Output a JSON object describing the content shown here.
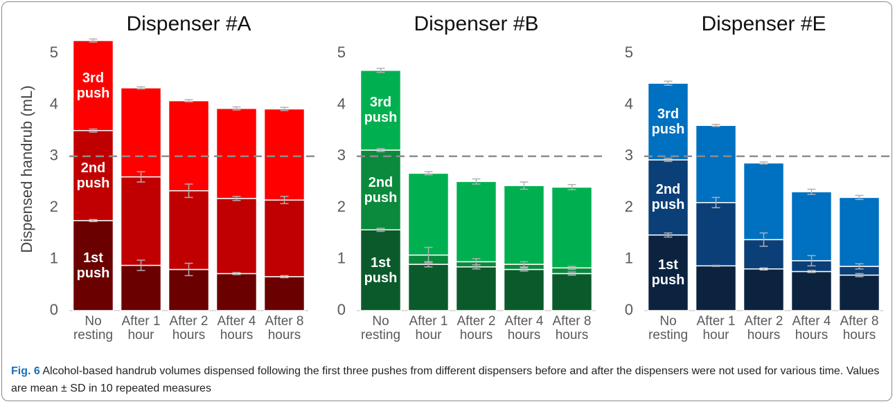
{
  "chart_data": [
    {
      "type": "stacked_bar",
      "title": "Dispenser #A",
      "y_label": "Dispensed handrub (mL)",
      "categories": [
        "No resting",
        "After 1 hour",
        "After 2 hours",
        "After 4 hours",
        "After 8 hours"
      ],
      "ylim": [
        0,
        5.5
      ],
      "yticks": [
        0,
        1,
        2,
        3,
        4,
        5
      ],
      "reference_line": 3,
      "series": [
        {
          "name": "1st push",
          "color": "#6b0000",
          "values": [
            1.75,
            0.88,
            0.8,
            0.72,
            0.66
          ],
          "errors": [
            0.02,
            0.1,
            0.12,
            0.02,
            0.02
          ]
        },
        {
          "name": "2nd push",
          "color": "#c00000",
          "values": [
            1.75,
            1.72,
            1.53,
            1.46,
            1.49
          ],
          "errors": [
            0.03,
            0.1,
            0.13,
            0.04,
            0.07
          ]
        },
        {
          "name": "3rd push",
          "color": "#ff0000",
          "values": [
            1.75,
            1.73,
            1.75,
            1.75,
            1.77
          ],
          "errors": [
            0.03,
            0.02,
            0.02,
            0.03,
            0.03
          ]
        }
      ]
    },
    {
      "type": "stacked_bar",
      "title": "Dispenser #B",
      "categories": [
        "No resting",
        "After 1 hour",
        "After 2 hours",
        "After 4 hours",
        "After 8 hours"
      ],
      "ylim": [
        0,
        5.5
      ],
      "yticks": [
        0,
        1,
        2,
        3,
        4,
        5
      ],
      "reference_line": 3,
      "series": [
        {
          "name": "1st push",
          "color": "#0b5a2c",
          "values": [
            1.57,
            0.9,
            0.85,
            0.8,
            0.72
          ],
          "errors": [
            0.03,
            0.05,
            0.04,
            0.03,
            0.03
          ]
        },
        {
          "name": "2nd push",
          "color": "#0b8a3e",
          "values": [
            1.55,
            0.18,
            0.1,
            0.1,
            0.11
          ],
          "errors": [
            0.03,
            0.15,
            0.06,
            0.05,
            0.03
          ]
        },
        {
          "name": "3rd push",
          "color": "#00b050",
          "values": [
            1.55,
            1.59,
            1.56,
            1.53,
            1.57
          ],
          "errors": [
            0.04,
            0.03,
            0.05,
            0.07,
            0.05
          ]
        }
      ]
    },
    {
      "type": "stacked_bar",
      "title": "Dispenser #E",
      "categories": [
        "No resting",
        "After 1 hour",
        "After 2 hours",
        "After 4 hours",
        "After 8 hours"
      ],
      "ylim": [
        0,
        5.5
      ],
      "yticks": [
        0,
        1,
        2,
        3,
        4,
        5
      ],
      "reference_line": 3,
      "series": [
        {
          "name": "1st push",
          "color": "#0c2340",
          "values": [
            1.47,
            0.87,
            0.81,
            0.76,
            0.69
          ],
          "errors": [
            0.04,
            0.01,
            0.02,
            0.02,
            0.03
          ]
        },
        {
          "name": "2nd push",
          "color": "#0b3f78",
          "values": [
            1.46,
            1.23,
            0.57,
            0.21,
            0.17
          ],
          "errors": [
            0.03,
            0.1,
            0.13,
            0.1,
            0.05
          ]
        },
        {
          "name": "3rd push",
          "color": "#0070c0",
          "values": [
            1.49,
            1.5,
            1.49,
            1.34,
            1.34
          ],
          "errors": [
            0.04,
            0.02,
            0.02,
            0.05,
            0.04
          ]
        }
      ]
    }
  ],
  "caption": {
    "label": "Fig. 6",
    "text": "Alcohol-based handrub volumes dispensed following the first three pushes from different dispensers before and after the dispensers were not used for various time. Values are mean ± SD in 10 repeated measures"
  }
}
